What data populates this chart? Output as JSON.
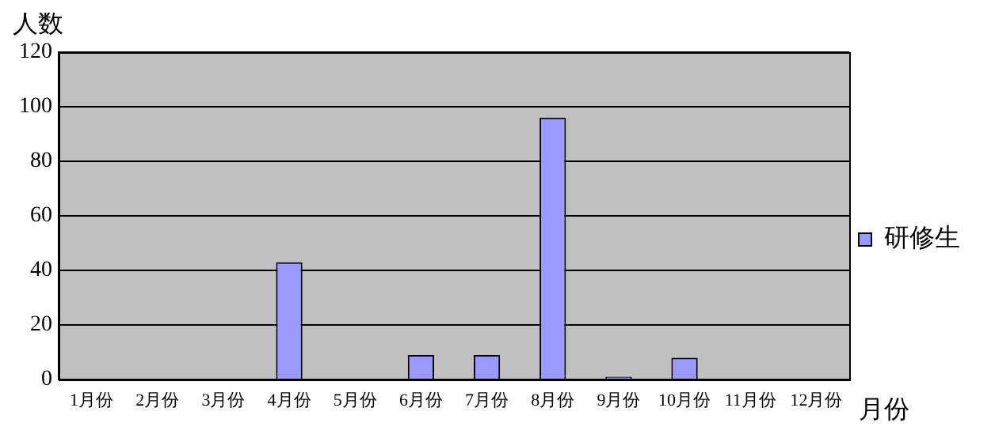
{
  "chart_data": {
    "type": "bar",
    "ylabel": "人数",
    "xlabel": "月份",
    "categories": [
      "1月份",
      "2月份",
      "3月份",
      "4月份",
      "5月份",
      "6月份",
      "7月份",
      "8月份",
      "9月份",
      "10月份",
      "11月份",
      "12月份"
    ],
    "series": [
      {
        "name": "研修生",
        "color": "#9999ff",
        "values": [
          0,
          0,
          0,
          43,
          0,
          9,
          9,
          96,
          1,
          8,
          0,
          0
        ]
      }
    ],
    "ylim": [
      0,
      120
    ],
    "yticks": [
      0,
      20,
      40,
      60,
      80,
      100,
      120
    ],
    "grid": "y",
    "legend": "right"
  }
}
